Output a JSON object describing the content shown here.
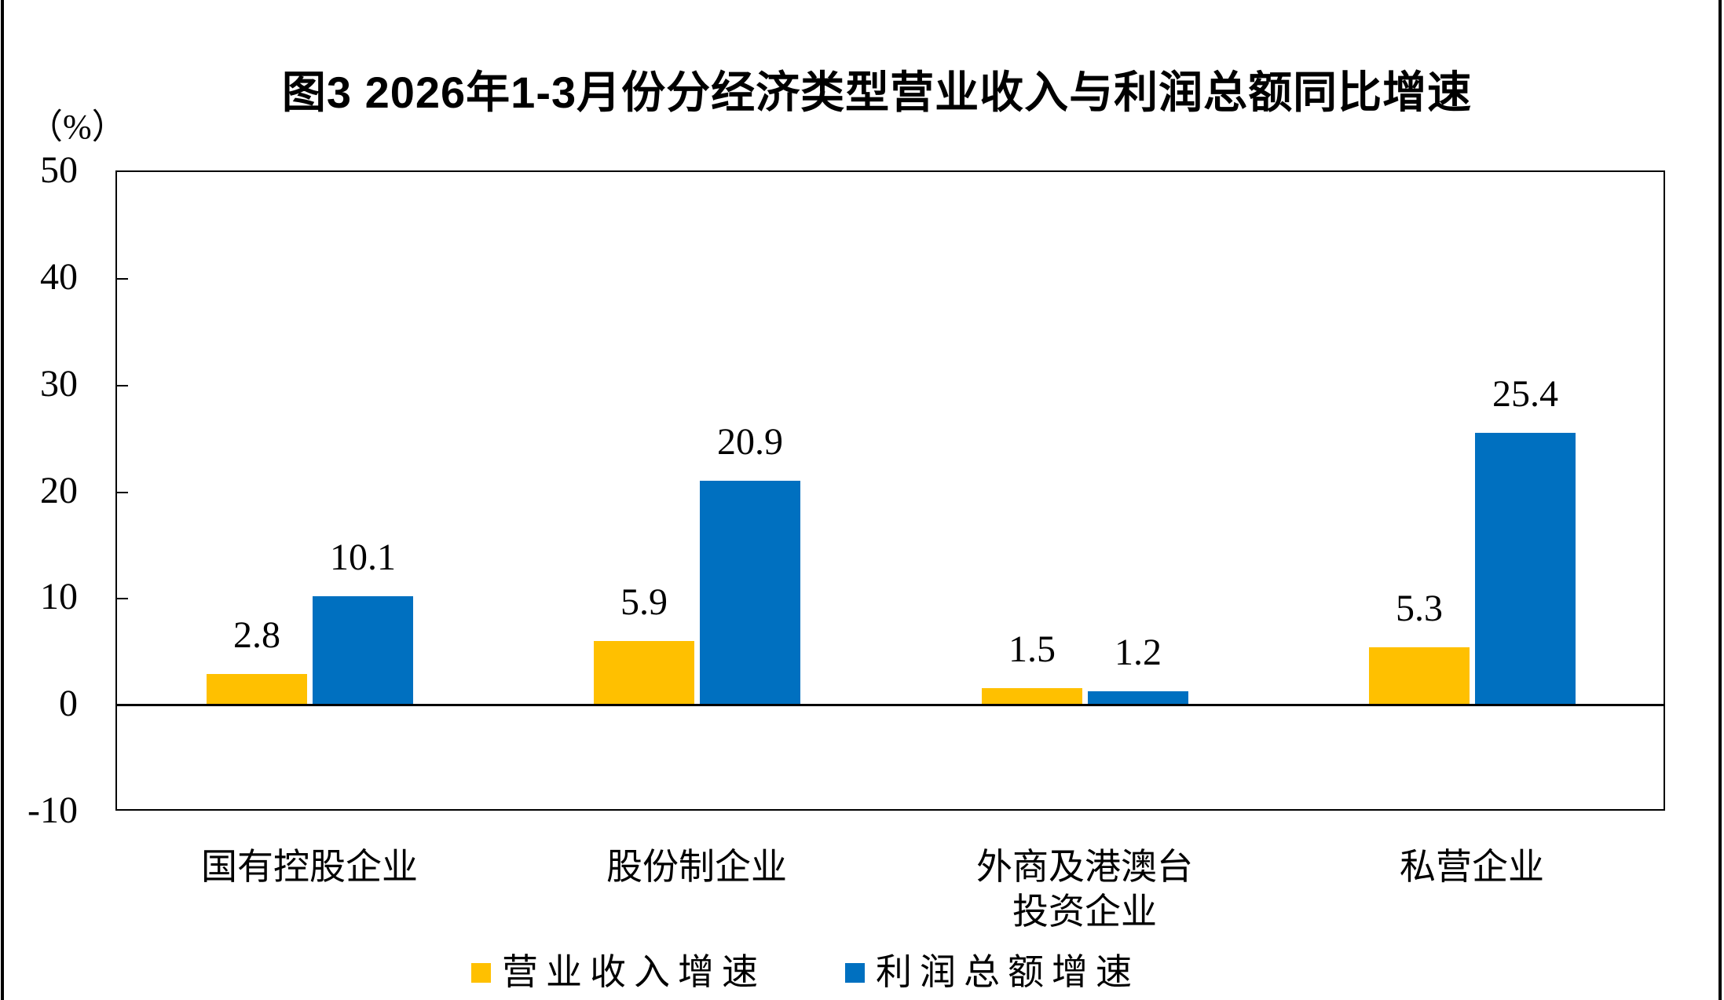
{
  "title": "图3 2026年1-3月份分经济类型营业收入与利润总额同比增速",
  "unit_label": "（%）",
  "chart_data": {
    "type": "bar",
    "title": "图3 2026年1-3月份分经济类型营业收入与利润总额同比增速",
    "ylabel": "（%）",
    "ylim": [
      -10,
      50
    ],
    "yticks": [
      "50",
      "40",
      "30",
      "20",
      "10",
      "0",
      "-10"
    ],
    "grid": false,
    "legend_position": "bottom",
    "categories": [
      "国有控股企业",
      "股份制企业",
      "外商及港澳台投资企业",
      "私营企业"
    ],
    "categories_display": [
      [
        "国有控股企业"
      ],
      [
        "股份制企业"
      ],
      [
        "外商及港澳台",
        "投资企业"
      ],
      [
        "私营企业"
      ]
    ],
    "series": [
      {
        "name": "营业收入增速",
        "color": "#FFC000",
        "values": [
          2.8,
          5.9,
          1.5,
          5.3
        ]
      },
      {
        "name": "利润总额增速",
        "color": "#0070C0",
        "values": [
          10.1,
          20.9,
          1.2,
          25.4
        ]
      }
    ]
  },
  "colors": {
    "axis": "#000000",
    "background": "#ffffff"
  }
}
